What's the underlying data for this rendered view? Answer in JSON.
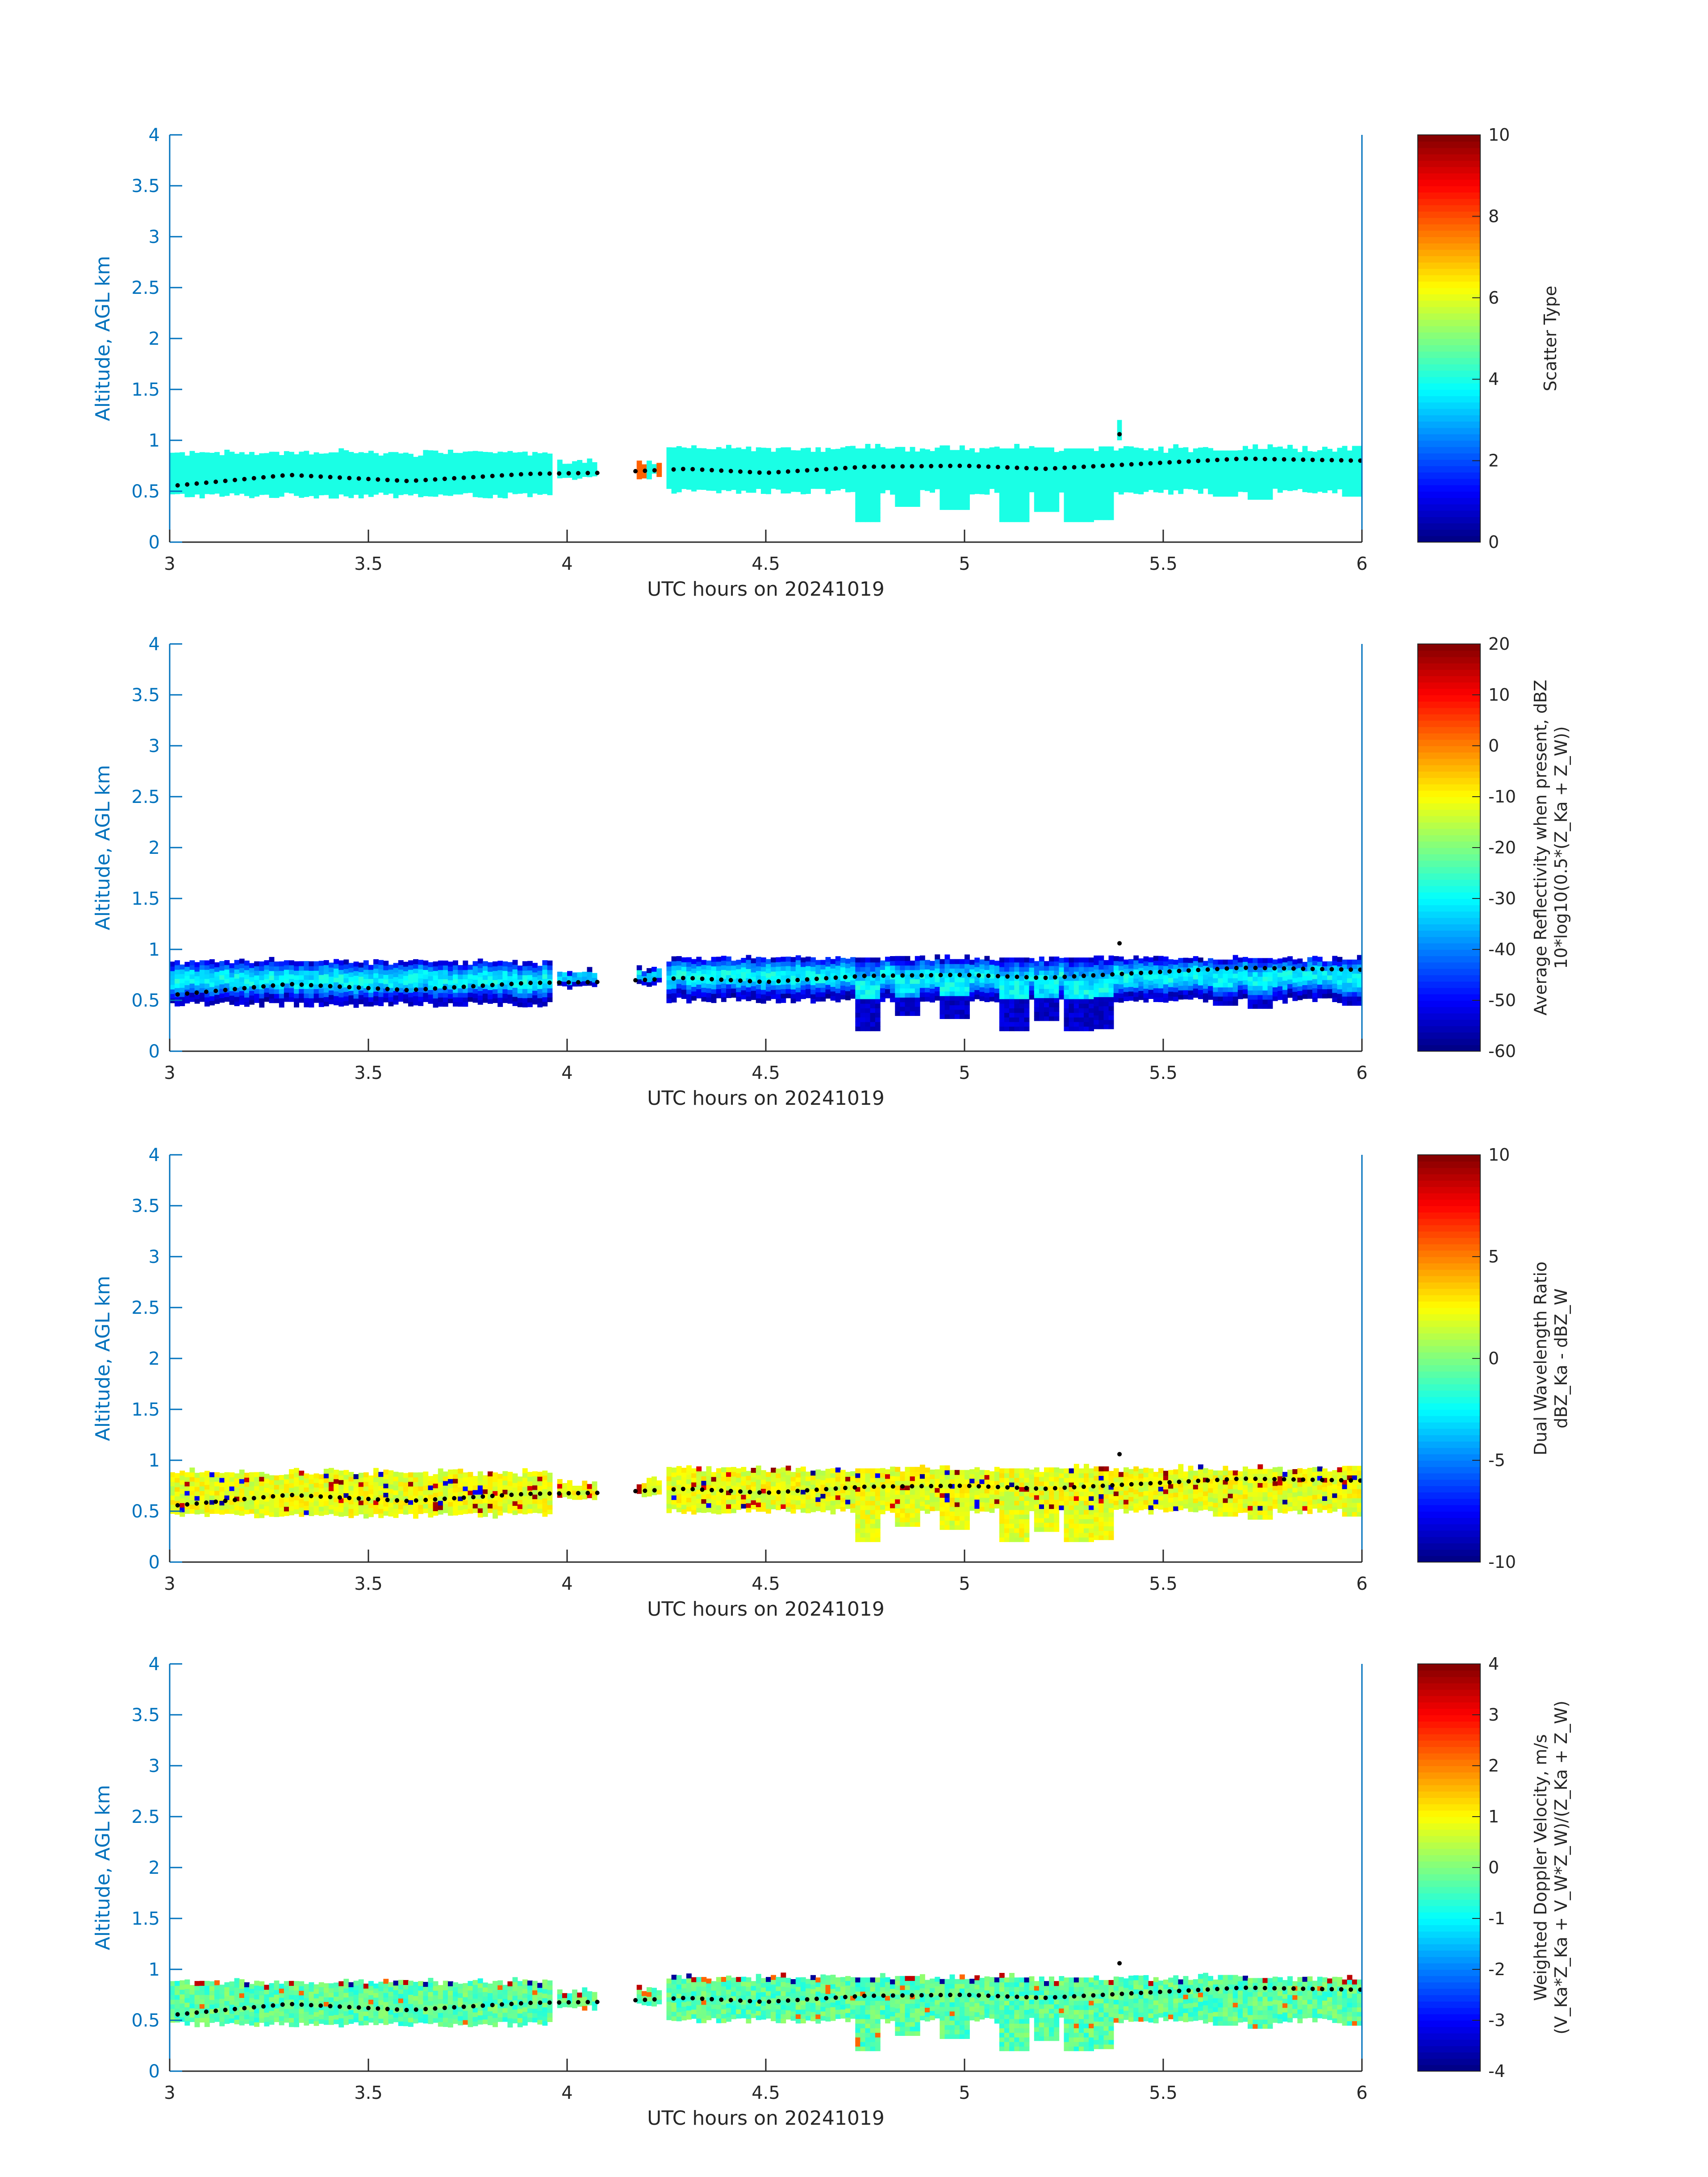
{
  "figure": {
    "date_label": "UTC hours on 20241019"
  },
  "chart_data": [
    {
      "type": "heatmap",
      "title": "",
      "xlabel": "UTC hours on 20241019",
      "ylabel": "Altitude, AGL km",
      "xlim": [
        3,
        6
      ],
      "ylim": [
        0,
        4
      ],
      "xticks": [
        3,
        3.5,
        4,
        4.5,
        5,
        5.5,
        6
      ],
      "xtick_labels": [
        "3",
        "3.5",
        "4",
        "4.5",
        "5",
        "5.5",
        "6"
      ],
      "yticks": [
        0,
        0.5,
        1,
        1.5,
        2,
        2.5,
        3,
        3.5,
        4
      ],
      "ytick_labels": [
        "0",
        "0.5",
        "1",
        "1.5",
        "2",
        "2.5",
        "3",
        "3.5",
        "4"
      ],
      "colorbar": {
        "label": "Scatter Type",
        "label2": "",
        "range": [
          0,
          10
        ],
        "ticks": [
          0,
          2,
          4,
          6,
          8,
          10
        ],
        "tick_labels": [
          "0",
          "2",
          "4",
          "6",
          "8",
          "10"
        ],
        "colormap": "jet"
      },
      "field": "scatter"
    },
    {
      "type": "heatmap",
      "title": "",
      "xlabel": "UTC hours on 20241019",
      "ylabel": "Altitude, AGL km",
      "xlim": [
        3,
        6
      ],
      "ylim": [
        0,
        4
      ],
      "xticks": [
        3,
        3.5,
        4,
        4.5,
        5,
        5.5,
        6
      ],
      "xtick_labels": [
        "3",
        "3.5",
        "4",
        "4.5",
        "5",
        "5.5",
        "6"
      ],
      "yticks": [
        0,
        0.5,
        1,
        1.5,
        2,
        2.5,
        3,
        3.5,
        4
      ],
      "ytick_labels": [
        "0",
        "0.5",
        "1",
        "1.5",
        "2",
        "2.5",
        "3",
        "3.5",
        "4"
      ],
      "colorbar": {
        "label": "Average Reflectivity when present, dBZ",
        "label2": "10*log10(0.5*(Z_Ka + Z_W))",
        "range": [
          -60,
          20
        ],
        "ticks": [
          -60,
          -50,
          -40,
          -30,
          -20,
          -10,
          0,
          10,
          20
        ],
        "tick_labels": [
          "-60",
          "-50",
          "-40",
          "-30",
          "-20",
          "-10",
          "0",
          "10",
          "20"
        ],
        "colormap": "jet"
      },
      "field": "reflectivity"
    },
    {
      "type": "heatmap",
      "title": "",
      "xlabel": "UTC hours on 20241019",
      "ylabel": "Altitude, AGL km",
      "xlim": [
        3,
        6
      ],
      "ylim": [
        0,
        4
      ],
      "xticks": [
        3,
        3.5,
        4,
        4.5,
        5,
        5.5,
        6
      ],
      "xtick_labels": [
        "3",
        "3.5",
        "4",
        "4.5",
        "5",
        "5.5",
        "6"
      ],
      "yticks": [
        0,
        0.5,
        1,
        1.5,
        2,
        2.5,
        3,
        3.5,
        4
      ],
      "ytick_labels": [
        "0",
        "0.5",
        "1",
        "1.5",
        "2",
        "2.5",
        "3",
        "3.5",
        "4"
      ],
      "colorbar": {
        "label": "Dual Wavelength Ratio",
        "label2": "dBZ_Ka - dBZ_W",
        "range": [
          -10,
          10
        ],
        "ticks": [
          -10,
          -5,
          0,
          5,
          10
        ],
        "tick_labels": [
          "-10",
          "-5",
          "0",
          "5",
          "10"
        ],
        "colormap": "jet"
      },
      "field": "dwr"
    },
    {
      "type": "heatmap",
      "title": "",
      "xlabel": "UTC hours on 20241019",
      "ylabel": "Altitude, AGL km",
      "xlim": [
        3,
        6
      ],
      "ylim": [
        0,
        4
      ],
      "xticks": [
        3,
        3.5,
        4,
        4.5,
        5,
        5.5,
        6
      ],
      "xtick_labels": [
        "3",
        "3.5",
        "4",
        "4.5",
        "5",
        "5.5",
        "6"
      ],
      "yticks": [
        0,
        0.5,
        1,
        1.5,
        2,
        2.5,
        3,
        3.5,
        4
      ],
      "ytick_labels": [
        "0",
        "0.5",
        "1",
        "1.5",
        "2",
        "2.5",
        "3",
        "3.5",
        "4"
      ],
      "colorbar": {
        "label": "Weighted Doppler Velocity, m/s",
        "label2": "(V_Ka*Z_Ka + V_W*Z_W)/(Z_Ka + Z_W)",
        "range": [
          -4,
          4
        ],
        "ticks": [
          -4,
          -3,
          -2,
          -1,
          0,
          1,
          2,
          3,
          4
        ],
        "tick_labels": [
          "-4",
          "-3",
          "-2",
          "-1",
          "0",
          "1",
          "2",
          "3",
          "4"
        ],
        "colormap": "jet"
      },
      "field": "velocity"
    }
  ],
  "cloud_layer": {
    "segments": [
      {
        "x_start": 3.0,
        "x_end": 3.96,
        "bottom_km": 0.46,
        "top_km": 0.86
      },
      {
        "x_start": 3.98,
        "x_end": 4.08,
        "bottom_km": 0.62,
        "top_km": 0.76
      },
      {
        "x_start": 4.17,
        "x_end": 4.24,
        "bottom_km": 0.65,
        "top_km": 0.78
      },
      {
        "x_start": 4.25,
        "x_end": 6.0,
        "bottom_km": 0.5,
        "top_km": 0.9
      }
    ],
    "fallstreaks": [
      {
        "x": 4.75,
        "bottom_km": 0.2
      },
      {
        "x": 4.85,
        "bottom_km": 0.35
      },
      {
        "x": 4.97,
        "bottom_km": 0.32
      },
      {
        "x": 5.12,
        "bottom_km": 0.2
      },
      {
        "x": 5.2,
        "bottom_km": 0.3
      },
      {
        "x": 5.28,
        "bottom_km": 0.2
      },
      {
        "x": 5.33,
        "bottom_km": 0.22
      },
      {
        "x": 5.65,
        "bottom_km": 0.45
      },
      {
        "x": 5.74,
        "bottom_km": 0.42
      },
      {
        "x": 5.98,
        "bottom_km": 0.45
      }
    ],
    "isolated_echo": {
      "x": 5.39,
      "bottom_km": 1.0,
      "top_km": 1.2
    },
    "cloud_top_dots_km": [
      {
        "x": 3.0,
        "y": 0.55
      },
      {
        "x": 3.3,
        "y": 0.66
      },
      {
        "x": 3.6,
        "y": 0.6
      },
      {
        "x": 3.9,
        "y": 0.67
      },
      {
        "x": 4.08,
        "y": 0.68
      },
      {
        "x": 4.3,
        "y": 0.72
      },
      {
        "x": 4.5,
        "y": 0.68
      },
      {
        "x": 4.75,
        "y": 0.74
      },
      {
        "x": 5.0,
        "y": 0.75
      },
      {
        "x": 5.2,
        "y": 0.72
      },
      {
        "x": 5.5,
        "y": 0.78
      },
      {
        "x": 5.7,
        "y": 0.82
      },
      {
        "x": 6.0,
        "y": 0.8
      }
    ]
  }
}
